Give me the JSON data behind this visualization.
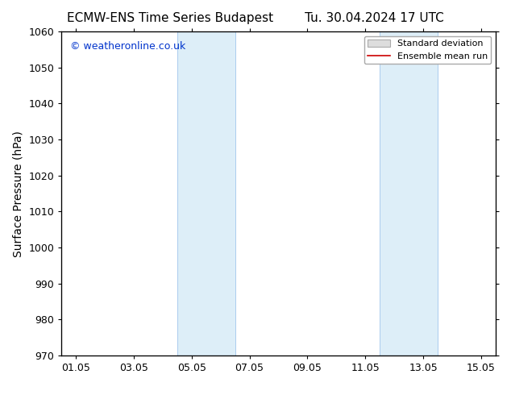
{
  "title_left": "ECMW-ENS Time Series Budapest",
  "title_right": "Tu. 30.04.2024 17 UTC",
  "ylabel": "Surface Pressure (hPa)",
  "ylim": [
    970,
    1060
  ],
  "yticks": [
    970,
    980,
    990,
    1000,
    1010,
    1020,
    1030,
    1040,
    1050,
    1060
  ],
  "xtick_labels": [
    "01.05",
    "03.05",
    "05.05",
    "07.05",
    "09.05",
    "11.05",
    "13.05",
    "15.05"
  ],
  "xtick_positions": [
    0,
    2,
    4,
    6,
    8,
    10,
    12,
    14
  ],
  "xmin": -0.5,
  "xmax": 14.5,
  "shaded_bands": [
    {
      "x_start": 3.5,
      "x_end": 5.5,
      "facecolor": "#ddeef8",
      "edgecolor": "#aaccee"
    },
    {
      "x_start": 10.5,
      "x_end": 12.5,
      "facecolor": "#ddeef8",
      "edgecolor": "#aaccee"
    }
  ],
  "watermark_text": "© weatheronline.co.uk",
  "watermark_color": "#0033cc",
  "watermark_fontsize": 9,
  "legend_std_dev_facecolor": "#dddddd",
  "legend_std_dev_edgecolor": "#aaaaaa",
  "legend_mean_color": "#cc0000",
  "background_color": "#ffffff",
  "title_fontsize": 11,
  "ylabel_fontsize": 10,
  "tick_fontsize": 9,
  "legend_fontsize": 8
}
